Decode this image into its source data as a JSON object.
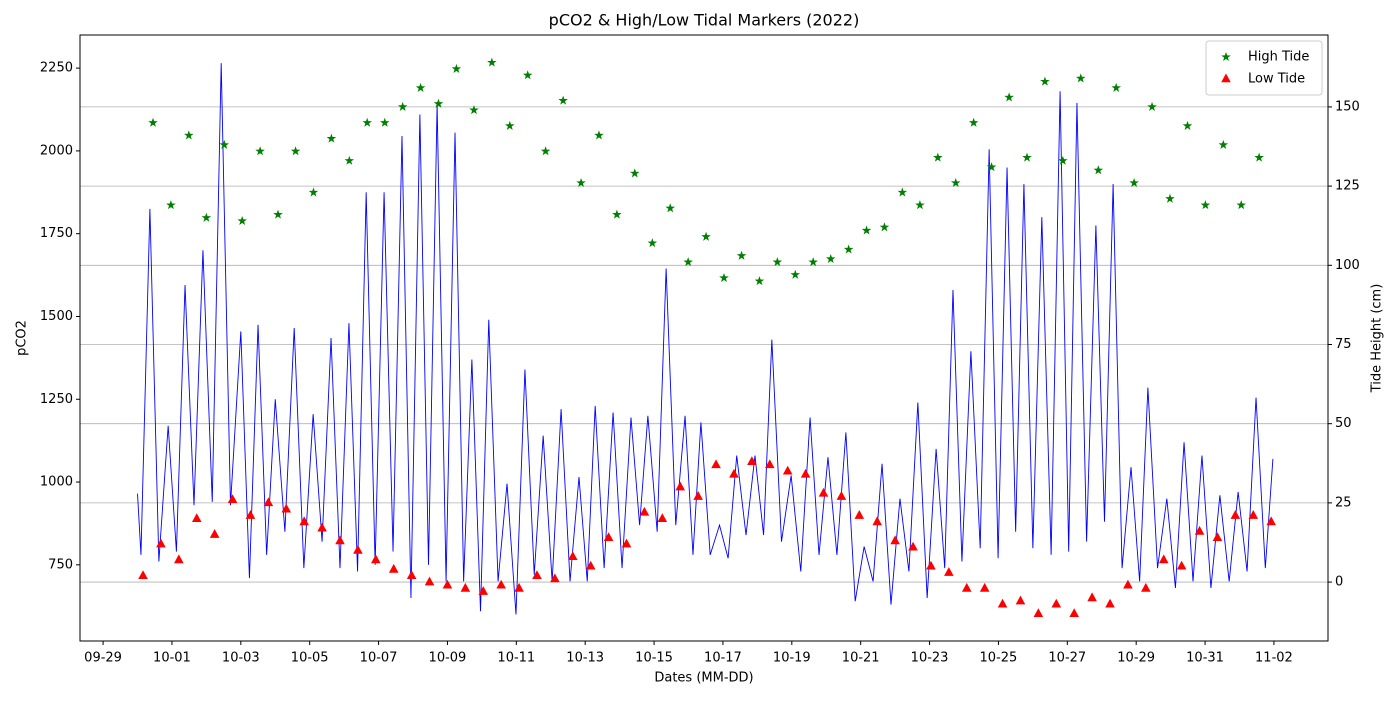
{
  "chart_data": {
    "type": "line",
    "title": "pCO2 & High/Low Tidal Markers (2022)",
    "xlabel": "Dates (MM-DD)",
    "ylabel": "pCO2",
    "y2label": "Tide Height (cm)",
    "xlim": [
      -0.67,
      35.57
    ],
    "xticks": [
      {
        "value": 0,
        "label": "09-29"
      },
      {
        "value": 2,
        "label": "10-01"
      },
      {
        "value": 4,
        "label": "10-03"
      },
      {
        "value": 6,
        "label": "10-05"
      },
      {
        "value": 8,
        "label": "10-07"
      },
      {
        "value": 10,
        "label": "10-09"
      },
      {
        "value": 12,
        "label": "10-11"
      },
      {
        "value": 14,
        "label": "10-13"
      },
      {
        "value": 16,
        "label": "10-15"
      },
      {
        "value": 18,
        "label": "10-17"
      },
      {
        "value": 20,
        "label": "10-19"
      },
      {
        "value": 22,
        "label": "10-21"
      },
      {
        "value": 24,
        "label": "10-23"
      },
      {
        "value": 26,
        "label": "10-25"
      },
      {
        "value": 28,
        "label": "10-27"
      },
      {
        "value": 30,
        "label": "10-29"
      },
      {
        "value": 32,
        "label": "10-31"
      },
      {
        "value": 34,
        "label": "11-02"
      }
    ],
    "ylim": [
      520,
      2350
    ],
    "yticks": [
      750,
      1000,
      1250,
      1500,
      1750,
      2000,
      2250
    ],
    "y2lim": [
      -18.6,
      172.7
    ],
    "y2ticks": [
      0,
      25,
      50,
      75,
      100,
      125,
      150
    ],
    "y2grid": true,
    "legend": "upper right",
    "series": [
      {
        "type": "line",
        "color": "#0000ff",
        "x": [
          1.0,
          1.1,
          1.36,
          1.62,
          1.89,
          2.13,
          2.38,
          2.64,
          2.9,
          3.17,
          3.43,
          3.7,
          4.0,
          4.25,
          4.5,
          4.75,
          5.0,
          5.28,
          5.55,
          5.83,
          6.1,
          6.36,
          6.62,
          6.88,
          7.14,
          7.39,
          7.64,
          7.9,
          8.16,
          8.42,
          8.68,
          8.94,
          9.2,
          9.45,
          9.7,
          9.96,
          10.22,
          10.47,
          10.71,
          10.96,
          11.2,
          11.47,
          11.73,
          11.99,
          12.25,
          12.52,
          12.78,
          13.04,
          13.3,
          13.56,
          13.82,
          14.06,
          14.29,
          14.55,
          14.81,
          15.07,
          15.33,
          15.58,
          15.82,
          16.09,
          16.35,
          16.63,
          16.9,
          17.13,
          17.36,
          17.63,
          17.9,
          18.15,
          18.4,
          18.67,
          18.93,
          19.18,
          19.42,
          19.7,
          19.98,
          20.26,
          20.53,
          20.79,
          21.05,
          21.31,
          21.57,
          21.84,
          22.1,
          22.36,
          22.62,
          22.88,
          23.14,
          23.4,
          23.66,
          23.93,
          24.19,
          24.44,
          24.68,
          24.94,
          25.2,
          25.47,
          25.73,
          25.99,
          26.25,
          26.5,
          26.74,
          27.0,
          27.26,
          27.53,
          27.79,
          28.04,
          28.28,
          28.56,
          28.83,
          29.08,
          29.33,
          29.59,
          29.85,
          30.1,
          30.34,
          30.62,
          30.89,
          31.14,
          31.39,
          31.65,
          31.91,
          32.17,
          32.43,
          32.7,
          32.96,
          33.22,
          33.48,
          33.75,
          33.97
        ],
        "values": [
          965,
          780,
          1825,
          760,
          1170,
          790,
          1595,
          930,
          1700,
          940,
          2265,
          930,
          1455,
          710,
          1475,
          780,
          1250,
          850,
          1465,
          740,
          1205,
          820,
          1435,
          740,
          1480,
          730,
          1875,
          750,
          1875,
          790,
          2045,
          650,
          2110,
          750,
          2140,
          700,
          2055,
          700,
          1370,
          610,
          1490,
          700,
          995,
          600,
          1340,
          720,
          1140,
          700,
          1220,
          700,
          1015,
          700,
          1230,
          740,
          1210,
          740,
          1195,
          870,
          1200,
          850,
          1645,
          870,
          1200,
          780,
          1180,
          780,
          870,
          770,
          1080,
          840,
          1080,
          840,
          1430,
          820,
          1020,
          730,
          1195,
          780,
          1075,
          780,
          1150,
          640,
          805,
          700,
          1055,
          630,
          950,
          730,
          1240,
          650,
          1100,
          740,
          1580,
          760,
          1395,
          800,
          2005,
          770,
          1950,
          850,
          1900,
          800,
          1800,
          780,
          2180,
          790,
          2145,
          820,
          1775,
          880,
          1900,
          740,
          1045,
          700,
          1285,
          740,
          950,
          680,
          1120,
          700,
          1080,
          680,
          960,
          700,
          970,
          730,
          1255,
          740,
          1070
        ]
      },
      {
        "name": "High Tide",
        "type": "scatter",
        "marker": "star",
        "color": "#008000",
        "axis": "y2",
        "x": [
          1.45,
          1.97,
          2.49,
          3.0,
          3.52,
          4.04,
          4.56,
          5.08,
          5.59,
          6.11,
          6.63,
          7.15,
          7.67,
          8.18,
          8.7,
          9.22,
          9.74,
          10.26,
          10.77,
          11.29,
          11.81,
          12.33,
          12.85,
          13.36,
          13.88,
          14.4,
          14.92,
          15.44,
          15.95,
          16.47,
          16.99,
          17.51,
          18.03,
          18.54,
          19.06,
          19.58,
          20.1,
          20.62,
          21.13,
          21.65,
          22.17,
          22.69,
          23.21,
          23.72,
          24.24,
          24.76,
          25.28,
          25.8,
          26.31,
          26.83,
          27.35,
          27.87,
          28.39,
          28.9,
          29.42,
          29.94,
          30.46,
          30.98,
          31.49,
          32.01,
          32.53,
          33.05,
          33.57
        ],
        "values": [
          145,
          119,
          141,
          115,
          138,
          114,
          136,
          116,
          136,
          123,
          140,
          133,
          145,
          145,
          150,
          156,
          151,
          162,
          149,
          164,
          144,
          160,
          136,
          152,
          126,
          141,
          116,
          129,
          107,
          118,
          101,
          109,
          96,
          103,
          95,
          101,
          97,
          101,
          102,
          105,
          111,
          112,
          123,
          119,
          134,
          126,
          145,
          131,
          153,
          134,
          158,
          133,
          159,
          130,
          156,
          126,
          150,
          121,
          144,
          119,
          138,
          119,
          134
        ]
      },
      {
        "name": "Low Tide",
        "type": "scatter",
        "marker": "triangle",
        "color": "#ff0000",
        "axis": "y2",
        "x": [
          1.16,
          1.68,
          2.2,
          2.72,
          3.24,
          3.76,
          4.28,
          4.8,
          5.32,
          5.84,
          6.36,
          6.88,
          7.4,
          7.92,
          8.44,
          8.96,
          9.48,
          10.0,
          10.52,
          11.04,
          11.56,
          12.08,
          12.6,
          13.12,
          13.64,
          14.16,
          14.68,
          15.2,
          15.72,
          16.24,
          16.76,
          17.28,
          17.8,
          18.32,
          18.84,
          19.36,
          19.88,
          20.4,
          20.92,
          21.44,
          21.96,
          22.48,
          23.0,
          23.52,
          24.04,
          24.56,
          25.08,
          25.6,
          26.12,
          26.64,
          27.16,
          27.68,
          28.2,
          28.72,
          29.24,
          29.76,
          30.28,
          30.8,
          31.32,
          31.84,
          32.36,
          32.88,
          33.4,
          33.92
        ],
        "values": [
          2,
          12,
          7,
          20,
          15,
          26,
          21,
          25,
          23,
          19,
          17,
          13,
          10,
          7,
          4,
          2,
          0,
          -1,
          -2,
          -3,
          -1,
          -2,
          2,
          1,
          8,
          5,
          14,
          12,
          22,
          20,
          30,
          27,
          37,
          34,
          38,
          37,
          35,
          34,
          28,
          27,
          21,
          19,
          13,
          11,
          5,
          3,
          -2,
          -2,
          -7,
          -6,
          -10,
          -7,
          -10,
          -5,
          -7,
          -1,
          -2,
          7,
          5,
          16,
          14,
          21,
          21,
          19
        ]
      }
    ]
  }
}
